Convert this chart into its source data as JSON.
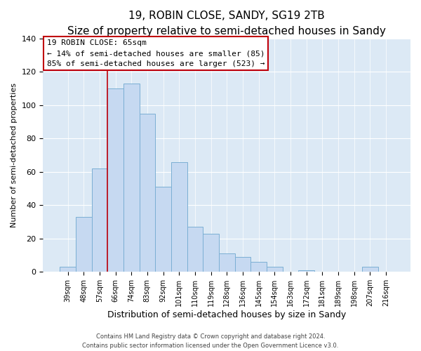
{
  "title": "19, ROBIN CLOSE, SANDY, SG19 2TB",
  "subtitle": "Size of property relative to semi-detached houses in Sandy",
  "xlabel": "Distribution of semi-detached houses by size in Sandy",
  "ylabel": "Number of semi-detached properties",
  "bar_labels": [
    "39sqm",
    "48sqm",
    "57sqm",
    "66sqm",
    "74sqm",
    "83sqm",
    "92sqm",
    "101sqm",
    "110sqm",
    "119sqm",
    "128sqm",
    "136sqm",
    "145sqm",
    "154sqm",
    "163sqm",
    "172sqm",
    "181sqm",
    "189sqm",
    "198sqm",
    "207sqm",
    "216sqm"
  ],
  "bar_values": [
    3,
    33,
    62,
    110,
    113,
    95,
    51,
    66,
    27,
    23,
    11,
    9,
    6,
    3,
    0,
    1,
    0,
    0,
    0,
    3,
    0
  ],
  "bar_color": "#c6d9f1",
  "bar_edge_color": "#7bafd4",
  "vline_color": "#c0000b",
  "vline_position": 3.0,
  "annotation_title": "19 ROBIN CLOSE: 65sqm",
  "annotation_line1": "← 14% of semi-detached houses are smaller (85)",
  "annotation_line2": "85% of semi-detached houses are larger (523) →",
  "annotation_box_color": "#ffffff",
  "annotation_box_edge": "#c0000b",
  "ylim": [
    0,
    140
  ],
  "yticks": [
    0,
    20,
    40,
    60,
    80,
    100,
    120,
    140
  ],
  "footer1": "Contains HM Land Registry data © Crown copyright and database right 2024.",
  "footer2": "Contains public sector information licensed under the Open Government Licence v3.0.",
  "title_fontsize": 11,
  "subtitle_fontsize": 9.5,
  "background_color": "#ffffff",
  "plot_bg_color": "#dce9f5"
}
